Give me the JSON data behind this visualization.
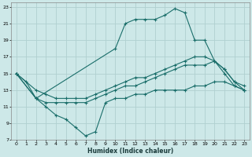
{
  "xlabel": "Humidex (Indice chaleur)",
  "bg_color": "#cde8e8",
  "grid_color": "#b0d0d0",
  "line_color": "#1a6e6a",
  "xlim": [
    -0.5,
    23.5
  ],
  "ylim": [
    7,
    23.5
  ],
  "xticks": [
    0,
    1,
    2,
    3,
    4,
    5,
    6,
    7,
    8,
    9,
    10,
    11,
    12,
    13,
    14,
    15,
    16,
    17,
    18,
    19,
    20,
    21,
    22,
    23
  ],
  "yticks": [
    7,
    9,
    11,
    13,
    15,
    17,
    19,
    21,
    23
  ],
  "curve_top": {
    "x": [
      0,
      1,
      2,
      10,
      11,
      12,
      13,
      14,
      15,
      16,
      17,
      18,
      19,
      20,
      21,
      22,
      23
    ],
    "y": [
      15,
      14,
      12,
      18,
      21,
      21.5,
      21.5,
      21.5,
      22,
      22.8,
      22.3,
      19,
      19,
      16.5,
      15,
      13.5,
      13
    ]
  },
  "curve_bot": {
    "x": [
      0,
      2,
      3,
      4,
      5,
      6,
      7,
      8,
      9,
      10,
      11,
      12,
      13,
      14,
      15,
      16,
      17,
      18,
      19,
      20,
      21,
      22,
      23
    ],
    "y": [
      15,
      12,
      11,
      10,
      9.5,
      8.5,
      7.5,
      8.0,
      11.5,
      12,
      12,
      12.5,
      12.5,
      13,
      13,
      13,
      13,
      13.5,
      13.5,
      14,
      14,
      13.5,
      13
    ]
  },
  "curve_mid_upper": {
    "x": [
      0,
      2,
      3,
      4,
      5,
      6,
      7,
      8,
      9,
      10,
      11,
      12,
      13,
      14,
      15,
      16,
      17,
      18,
      19,
      20,
      21,
      22,
      23
    ],
    "y": [
      15,
      13,
      12.5,
      12,
      12,
      12,
      12,
      12.5,
      13,
      13.5,
      14,
      14.5,
      14.5,
      15,
      15.5,
      16,
      16.5,
      17,
      17,
      16.5,
      15.5,
      14,
      13.5
    ]
  },
  "curve_mid_lower": {
    "x": [
      0,
      2,
      3,
      4,
      5,
      6,
      7,
      8,
      9,
      10,
      11,
      12,
      13,
      14,
      15,
      16,
      17,
      18,
      19,
      20,
      21,
      22,
      23
    ],
    "y": [
      15,
      12,
      11.5,
      11.5,
      11.5,
      11.5,
      11.5,
      12,
      12.5,
      13,
      13.5,
      13.5,
      14,
      14.5,
      15,
      15.5,
      16,
      16,
      16,
      16.5,
      15.5,
      14,
      13
    ]
  }
}
